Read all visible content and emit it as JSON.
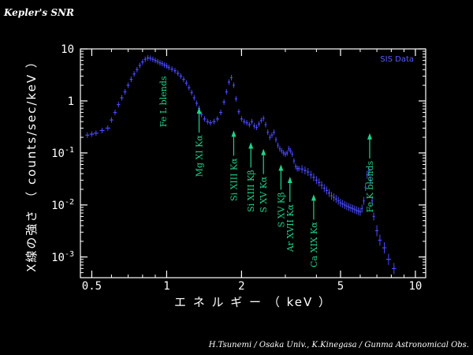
{
  "title": "Kepler's SNR",
  "credit": "H.Tsunemi / Osaka Univ.,   K.Kinegasa / Gunma Astronomical Obs.",
  "chart_data": {
    "type": "scatter",
    "xlabel": "エ ネ ル ギ ー （ keV ）",
    "ylabel": "X線の強さ （ counts/sec/keV ）",
    "xscale": "log",
    "yscale": "log",
    "xlim": [
      0.45,
      11
    ],
    "ylim": [
      0.0004,
      10
    ],
    "x_ticks": [
      {
        "v": 0.5,
        "label": "0.5"
      },
      {
        "v": 1,
        "label": "1"
      },
      {
        "v": 2,
        "label": "2"
      },
      {
        "v": 5,
        "label": "5"
      },
      {
        "v": 10,
        "label": "10"
      }
    ],
    "y_ticks": [
      {
        "v": 10,
        "label": "10",
        "sup": ""
      },
      {
        "v": 1,
        "label": "1",
        "sup": ""
      },
      {
        "v": 0.1,
        "label": "10",
        "sup": "-1"
      },
      {
        "v": 0.01,
        "label": "10",
        "sup": "-2"
      },
      {
        "v": 0.001,
        "label": "10",
        "sup": "-3"
      }
    ],
    "legend": "SIS Data",
    "legend_position": "top-right",
    "series_color": "#4a4aff",
    "annotation_color": "#1fd48a",
    "series": [
      {
        "name": "SIS Data",
        "points": [
          [
            0.48,
            0.22
          ],
          [
            0.5,
            0.23
          ],
          [
            0.52,
            0.24
          ],
          [
            0.55,
            0.27
          ],
          [
            0.58,
            0.3
          ],
          [
            0.6,
            0.43
          ],
          [
            0.62,
            0.6
          ],
          [
            0.64,
            0.85
          ],
          [
            0.66,
            1.15
          ],
          [
            0.68,
            1.5
          ],
          [
            0.7,
            2.0
          ],
          [
            0.72,
            2.6
          ],
          [
            0.74,
            3.3
          ],
          [
            0.76,
            4.0
          ],
          [
            0.78,
            4.8
          ],
          [
            0.8,
            5.6
          ],
          [
            0.82,
            6.3
          ],
          [
            0.84,
            6.7
          ],
          [
            0.86,
            6.6
          ],
          [
            0.88,
            6.3
          ],
          [
            0.9,
            6.0
          ],
          [
            0.92,
            5.7
          ],
          [
            0.94,
            5.4
          ],
          [
            0.96,
            5.2
          ],
          [
            0.98,
            4.9
          ],
          [
            1.0,
            4.7
          ],
          [
            1.02,
            4.4
          ],
          [
            1.05,
            4.1
          ],
          [
            1.08,
            3.8
          ],
          [
            1.11,
            3.4
          ],
          [
            1.14,
            3.0
          ],
          [
            1.17,
            2.6
          ],
          [
            1.2,
            2.2
          ],
          [
            1.23,
            1.8
          ],
          [
            1.26,
            1.45
          ],
          [
            1.29,
            1.15
          ],
          [
            1.32,
            0.9
          ],
          [
            1.35,
            0.72
          ],
          [
            1.38,
            0.55
          ],
          [
            1.42,
            0.45
          ],
          [
            1.46,
            0.4
          ],
          [
            1.5,
            0.38
          ],
          [
            1.55,
            0.4
          ],
          [
            1.6,
            0.45
          ],
          [
            1.65,
            0.6
          ],
          [
            1.7,
            0.95
          ],
          [
            1.74,
            1.5
          ],
          [
            1.78,
            2.3
          ],
          [
            1.82,
            2.8
          ],
          [
            1.86,
            2.0
          ],
          [
            1.9,
            1.1
          ],
          [
            1.95,
            0.62
          ],
          [
            2.0,
            0.45
          ],
          [
            2.05,
            0.4
          ],
          [
            2.1,
            0.38
          ],
          [
            2.15,
            0.35
          ],
          [
            2.2,
            0.4
          ],
          [
            2.25,
            0.33
          ],
          [
            2.3,
            0.31
          ],
          [
            2.35,
            0.36
          ],
          [
            2.4,
            0.42
          ],
          [
            2.45,
            0.46
          ],
          [
            2.5,
            0.35
          ],
          [
            2.55,
            0.25
          ],
          [
            2.6,
            0.2
          ],
          [
            2.65,
            0.22
          ],
          [
            2.7,
            0.25
          ],
          [
            2.75,
            0.18
          ],
          [
            2.8,
            0.14
          ],
          [
            2.85,
            0.12
          ],
          [
            2.9,
            0.11
          ],
          [
            2.95,
            0.1
          ],
          [
            3.0,
            0.095
          ],
          [
            3.05,
            0.1
          ],
          [
            3.1,
            0.12
          ],
          [
            3.15,
            0.11
          ],
          [
            3.2,
            0.095
          ],
          [
            3.25,
            0.07
          ],
          [
            3.3,
            0.055
          ],
          [
            3.35,
            0.05
          ],
          [
            3.4,
            0.05
          ],
          [
            3.5,
            0.049
          ],
          [
            3.6,
            0.046
          ],
          [
            3.7,
            0.043
          ],
          [
            3.8,
            0.038
          ],
          [
            3.9,
            0.034
          ],
          [
            4.0,
            0.03
          ],
          [
            4.1,
            0.027
          ],
          [
            4.2,
            0.024
          ],
          [
            4.3,
            0.021
          ],
          [
            4.4,
            0.019
          ],
          [
            4.5,
            0.017
          ],
          [
            4.6,
            0.015
          ],
          [
            4.7,
            0.014
          ],
          [
            4.8,
            0.013
          ],
          [
            4.9,
            0.012
          ],
          [
            5.0,
            0.011
          ],
          [
            5.1,
            0.0105
          ],
          [
            5.2,
            0.01
          ],
          [
            5.3,
            0.0095
          ],
          [
            5.4,
            0.0091
          ],
          [
            5.5,
            0.0088
          ],
          [
            5.6,
            0.0085
          ],
          [
            5.7,
            0.0082
          ],
          [
            5.8,
            0.0079
          ],
          [
            5.9,
            0.0076
          ],
          [
            6.0,
            0.0074
          ],
          [
            6.1,
            0.0085
          ],
          [
            6.2,
            0.012
          ],
          [
            6.3,
            0.022
          ],
          [
            6.4,
            0.038
          ],
          [
            6.5,
            0.045
          ],
          [
            6.6,
            0.03
          ],
          [
            6.7,
            0.012
          ],
          [
            6.8,
            0.006
          ],
          [
            7.0,
            0.0032
          ],
          [
            7.2,
            0.0021
          ],
          [
            7.5,
            0.0015
          ],
          [
            7.8,
            0.0009
          ],
          [
            8.2,
            0.0006
          ]
        ]
      }
    ],
    "annotations": [
      {
        "label": "Fe L blends",
        "x": 0.97,
        "y": 3.0,
        "arrow": false
      },
      {
        "label": "Mg XI Kα",
        "x": 1.35,
        "y": 0.75,
        "arrow": true
      },
      {
        "label": "Si XIII Kα",
        "x": 1.86,
        "y": 0.27,
        "arrow": true
      },
      {
        "label": "Si XIII Kβ",
        "x": 2.18,
        "y": 0.16,
        "arrow": true
      },
      {
        "label": "S XV Kα",
        "x": 2.45,
        "y": 0.12,
        "arrow": true
      },
      {
        "label": "S XV Kβ",
        "x": 2.88,
        "y": 0.06,
        "arrow": true
      },
      {
        "label": "Ar XVII Kα",
        "x": 3.13,
        "y": 0.035,
        "arrow": true
      },
      {
        "label": "Ca XIX Kα",
        "x": 3.9,
        "y": 0.016,
        "arrow": true
      },
      {
        "label": "Fe K blends",
        "x": 6.55,
        "y": 0.24,
        "arrow": true
      }
    ]
  }
}
